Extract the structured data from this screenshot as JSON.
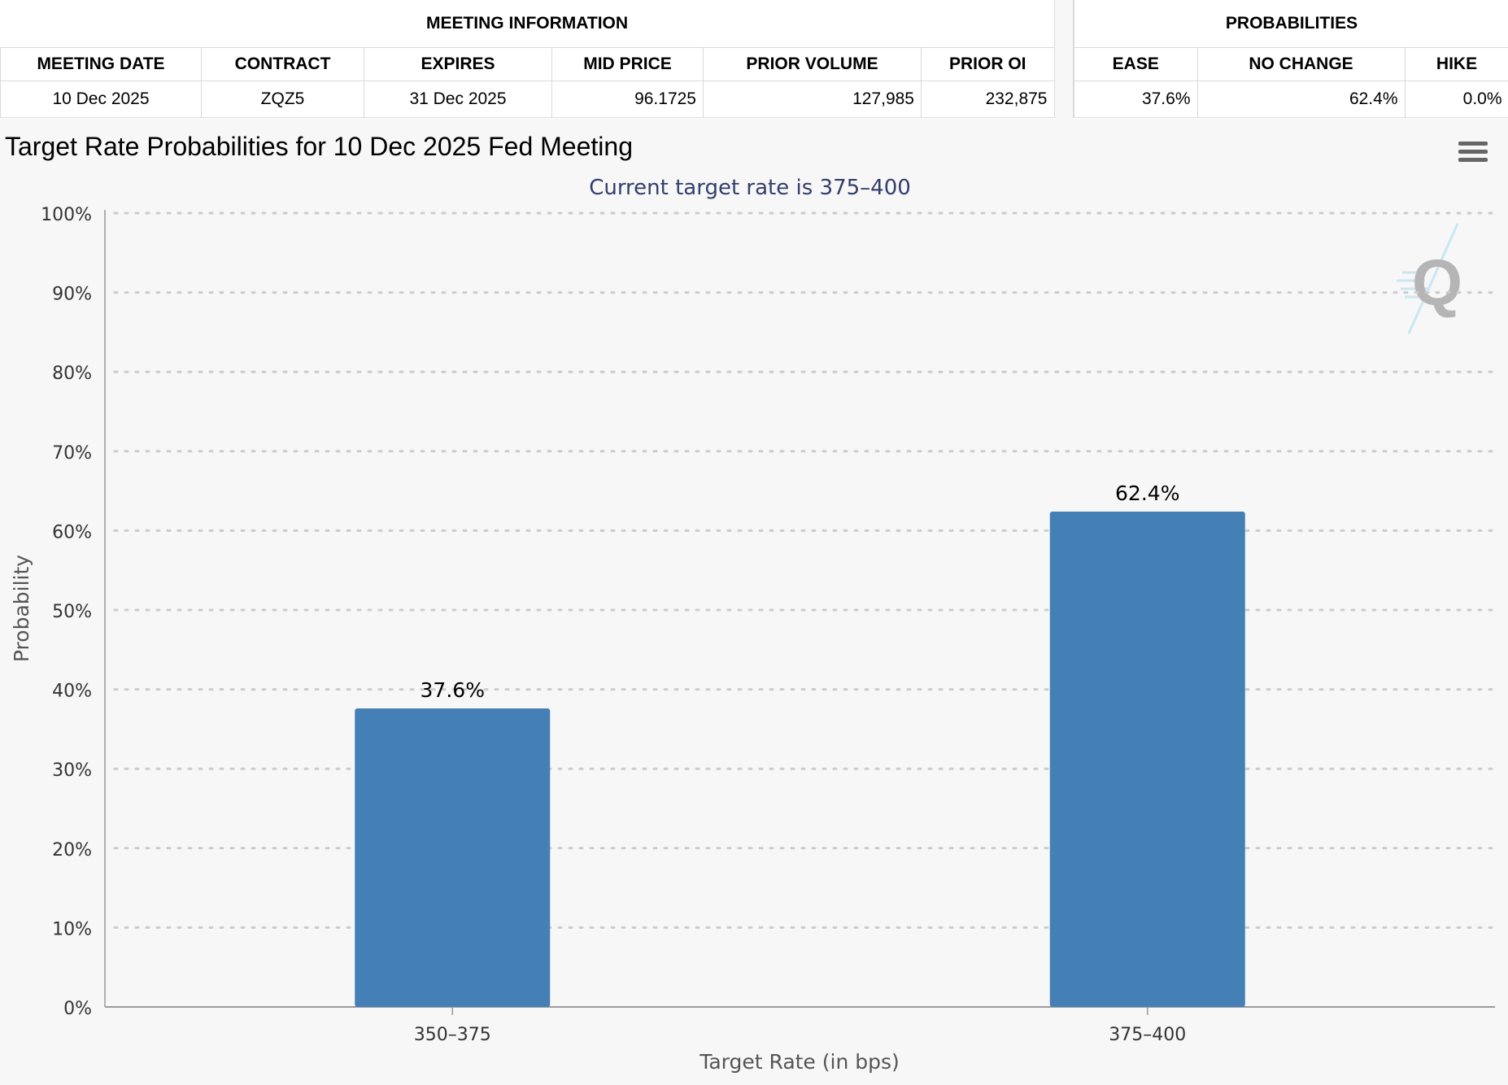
{
  "meeting_info": {
    "group_title": "MEETING INFORMATION",
    "headers": [
      "MEETING DATE",
      "CONTRACT",
      "EXPIRES",
      "MID PRICE",
      "PRIOR VOLUME",
      "PRIOR OI"
    ],
    "row": [
      "10 Dec 2025",
      "ZQZ5",
      "31 Dec 2025",
      "96.1725",
      "127,985",
      "232,875"
    ]
  },
  "probabilities": {
    "group_title": "PROBABILITIES",
    "headers": [
      "EASE",
      "NO CHANGE",
      "HIKE"
    ],
    "row": [
      "37.6%",
      "62.4%",
      "0.0%"
    ]
  },
  "chart_title": "Target Rate Probabilities for 10 Dec 2025 Fed Meeting",
  "menu_icon": "hamburger-menu-icon",
  "watermark_icon": "q-logo-icon",
  "chart_data": {
    "type": "bar",
    "subtitle": "Current target rate is 375–400",
    "categories": [
      "350–375",
      "375–400"
    ],
    "values": [
      37.6,
      62.4
    ],
    "data_labels": [
      "37.6%",
      "62.4%"
    ],
    "xlabel": "Target Rate (in bps)",
    "ylabel": "Probability",
    "ylim": [
      0,
      100
    ],
    "y_ticks": [
      "0%",
      "10%",
      "20%",
      "30%",
      "40%",
      "50%",
      "60%",
      "70%",
      "80%",
      "90%",
      "100%"
    ],
    "grid": true,
    "legend": "none",
    "bar_color": "#4480b5",
    "subtitle_color": "#333e6b"
  }
}
